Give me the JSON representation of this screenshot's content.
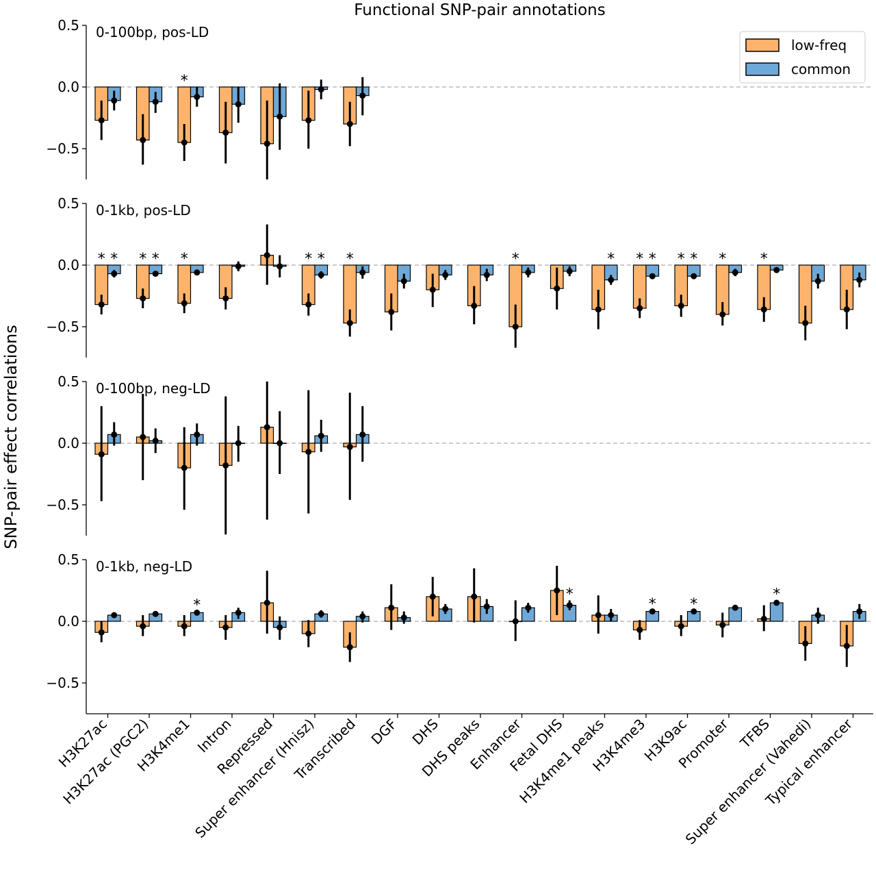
{
  "figure": {
    "title": "Functional SNP-pair annotations",
    "ylabel": "SNP-pair effect correlations",
    "legend": {
      "placement": "top-right",
      "items": [
        {
          "label": "low-freq",
          "color": "#fdb36b"
        },
        {
          "label": "common",
          "color": "#6fa8d6"
        }
      ]
    },
    "colors": {
      "low_freq": "#fdb36b",
      "common": "#6fa8d6",
      "errorbar": "#000000",
      "zero_line": "#bbbbbb"
    }
  },
  "chart_data": [
    {
      "type": "bar",
      "label": "0-100bp, pos-LD",
      "ylim": [
        -0.75,
        0.5
      ],
      "yticks": [
        0.5,
        0.0,
        -0.5
      ],
      "ytick_labels": [
        "0.5",
        "0.0",
        "−0.5"
      ],
      "categories": [
        "H3K27ac",
        "H3K27ac (PGC2)",
        "H3K4me1",
        "Intron",
        "Repressed",
        "Super enhancer (Hnisz)",
        "Transcribed"
      ],
      "series": [
        {
          "name": "low-freq",
          "values": [
            -0.27,
            -0.43,
            -0.45,
            -0.37,
            -0.46,
            -0.27,
            -0.3
          ],
          "err_low": [
            -0.43,
            -0.63,
            -0.6,
            -0.62,
            -0.75,
            -0.5,
            -0.48
          ],
          "err_high": [
            -0.11,
            -0.22,
            -0.3,
            -0.12,
            -0.11,
            -0.03,
            -0.12
          ]
        },
        {
          "name": "common",
          "values": [
            -0.11,
            -0.12,
            -0.08,
            -0.14,
            -0.24,
            -0.02,
            -0.07
          ],
          "err_low": [
            -0.19,
            -0.21,
            -0.16,
            -0.29,
            -0.51,
            -0.1,
            -0.23
          ],
          "err_high": [
            -0.03,
            -0.04,
            0.0,
            0.0,
            0.03,
            0.06,
            0.08
          ]
        }
      ],
      "annotations": [
        {
          "category": 2,
          "series": "low-freq",
          "text": "*"
        }
      ]
    },
    {
      "type": "bar",
      "label": "0-1kb, pos-LD",
      "ylim": [
        -0.75,
        0.5
      ],
      "yticks": [
        0.5,
        0.0,
        -0.5
      ],
      "ytick_labels": [
        "0.5",
        "0.0",
        "−0.5"
      ],
      "categories": [
        "H3K27ac",
        "H3K27ac (PGC2)",
        "H3K4me1",
        "Intron",
        "Repressed",
        "Super enhancer (Hnisz)",
        "Transcribed",
        "DGF",
        "DHS",
        "DHS peaks",
        "Enhancer",
        "Fetal DHS",
        "H3K4me1 peaks",
        "H3K4me3",
        "H3K9ac",
        "Promoter",
        "TFBS",
        "Super enhancer (Vahedi)",
        "Typical enhancer"
      ],
      "series": [
        {
          "name": "low-freq",
          "values": [
            -0.32,
            -0.27,
            -0.31,
            -0.27,
            0.08,
            -0.32,
            -0.47,
            -0.38,
            -0.2,
            -0.33,
            -0.5,
            -0.19,
            -0.36,
            -0.35,
            -0.33,
            -0.4,
            -0.36,
            -0.47,
            -0.36
          ],
          "err_low": [
            -0.4,
            -0.35,
            -0.39,
            -0.36,
            -0.16,
            -0.41,
            -0.58,
            -0.53,
            -0.34,
            -0.48,
            -0.67,
            -0.36,
            -0.52,
            -0.43,
            -0.42,
            -0.49,
            -0.46,
            -0.61,
            -0.52
          ],
          "err_high": [
            -0.24,
            -0.19,
            -0.23,
            -0.18,
            0.33,
            -0.23,
            -0.36,
            -0.23,
            -0.07,
            -0.17,
            -0.32,
            -0.02,
            -0.2,
            -0.27,
            -0.24,
            -0.3,
            -0.26,
            -0.33,
            -0.2
          ]
        },
        {
          "name": "common",
          "values": [
            -0.07,
            -0.07,
            -0.06,
            -0.01,
            -0.01,
            -0.08,
            -0.06,
            -0.13,
            -0.08,
            -0.08,
            -0.06,
            -0.05,
            -0.12,
            -0.09,
            -0.09,
            -0.06,
            -0.04,
            -0.13,
            -0.12
          ],
          "err_low": [
            -0.1,
            -0.09,
            -0.08,
            -0.05,
            -0.1,
            -0.11,
            -0.11,
            -0.19,
            -0.12,
            -0.13,
            -0.1,
            -0.09,
            -0.16,
            -0.11,
            -0.11,
            -0.09,
            -0.06,
            -0.19,
            -0.18
          ],
          "err_high": [
            -0.04,
            -0.05,
            -0.04,
            0.03,
            0.08,
            -0.05,
            -0.01,
            -0.07,
            -0.04,
            -0.03,
            -0.02,
            -0.01,
            -0.08,
            -0.07,
            -0.07,
            -0.03,
            -0.02,
            -0.07,
            -0.06
          ]
        }
      ],
      "annotations": [
        {
          "category": 0,
          "series": "low-freq",
          "text": "*"
        },
        {
          "category": 0,
          "series": "common",
          "text": "*"
        },
        {
          "category": 1,
          "series": "low-freq",
          "text": "*"
        },
        {
          "category": 1,
          "series": "common",
          "text": "*"
        },
        {
          "category": 2,
          "series": "low-freq",
          "text": "*"
        },
        {
          "category": 5,
          "series": "low-freq",
          "text": "*"
        },
        {
          "category": 5,
          "series": "common",
          "text": "*"
        },
        {
          "category": 6,
          "series": "low-freq",
          "text": "*"
        },
        {
          "category": 10,
          "series": "low-freq",
          "text": "*"
        },
        {
          "category": 12,
          "series": "common",
          "text": "*"
        },
        {
          "category": 13,
          "series": "low-freq",
          "text": "*"
        },
        {
          "category": 13,
          "series": "common",
          "text": "*"
        },
        {
          "category": 14,
          "series": "low-freq",
          "text": "*"
        },
        {
          "category": 14,
          "series": "common",
          "text": "*"
        },
        {
          "category": 15,
          "series": "low-freq",
          "text": "*"
        },
        {
          "category": 16,
          "series": "low-freq",
          "text": "*"
        }
      ]
    },
    {
      "type": "bar",
      "label": "0-100bp, neg-LD",
      "ylim": [
        -0.75,
        0.5
      ],
      "yticks": [
        0.5,
        0.0,
        -0.5
      ],
      "ytick_labels": [
        "0.5",
        "0.0",
        "−0.5"
      ],
      "categories": [
        "H3K27ac",
        "H3K27ac (PGC2)",
        "H3K4me1",
        "Intron",
        "Repressed",
        "Super enhancer (Hnisz)",
        "Transcribed"
      ],
      "series": [
        {
          "name": "low-freq",
          "values": [
            -0.09,
            0.05,
            -0.2,
            -0.18,
            0.13,
            -0.07,
            -0.03
          ],
          "err_low": [
            -0.47,
            -0.3,
            -0.54,
            -0.74,
            -0.62,
            -0.57,
            -0.46
          ],
          "err_high": [
            0.3,
            0.4,
            0.13,
            0.38,
            0.5,
            0.43,
            0.41
          ]
        },
        {
          "name": "common",
          "values": [
            0.07,
            0.02,
            0.07,
            0.0,
            0.0,
            0.06,
            0.07
          ],
          "err_low": [
            -0.02,
            -0.08,
            -0.02,
            -0.15,
            -0.25,
            -0.07,
            -0.15
          ],
          "err_high": [
            0.17,
            0.12,
            0.16,
            0.14,
            0.26,
            0.19,
            0.3
          ]
        }
      ],
      "annotations": []
    },
    {
      "type": "bar",
      "label": "0-1kb, neg-LD",
      "ylim": [
        -0.75,
        0.5
      ],
      "yticks": [
        0.5,
        0.0,
        -0.5
      ],
      "ytick_labels": [
        "0.5",
        "0.0",
        "−0.5"
      ],
      "categories": [
        "H3K27ac",
        "H3K27ac (PGC2)",
        "H3K4me1",
        "Intron",
        "Repressed",
        "Super enhancer (Hnisz)",
        "Transcribed",
        "DGF",
        "DHS",
        "DHS peaks",
        "Enhancer",
        "Fetal DHS",
        "H3K4me1 peaks",
        "H3K4me3",
        "H3K9ac",
        "Promoter",
        "TFBS",
        "Super enhancer (Vahedi)",
        "Typical enhancer"
      ],
      "xtick_labels": [
        "H3K27ac",
        "H3K27ac (PGC2)",
        "H3K4me1",
        "Intron",
        "Repressed",
        "Super enhancer (Hnisz)",
        "Transcribed",
        "DGF",
        "DHS",
        "DHS peaks",
        "Enhancer",
        "Fetal DHS",
        "H3K4me1 peaks",
        "H3K4me3",
        "H3K9ac",
        "Promoter",
        "TFBS",
        "Super enhancer (Vahedi)",
        "Typical enhancer"
      ],
      "series": [
        {
          "name": "low-freq",
          "values": [
            -0.09,
            -0.04,
            -0.04,
            -0.05,
            0.15,
            -0.1,
            -0.21,
            0.11,
            0.2,
            0.2,
            0.0,
            0.25,
            0.05,
            -0.07,
            -0.04,
            -0.03,
            0.02,
            -0.18,
            -0.2
          ],
          "err_low": [
            -0.17,
            -0.12,
            -0.12,
            -0.15,
            -0.1,
            -0.21,
            -0.33,
            -0.07,
            0.04,
            -0.01,
            -0.16,
            0.05,
            -0.1,
            -0.15,
            -0.12,
            -0.13,
            -0.08,
            -0.32,
            -0.37
          ],
          "err_high": [
            0.0,
            0.05,
            0.05,
            0.05,
            0.41,
            0.01,
            -0.09,
            0.3,
            0.36,
            0.43,
            0.17,
            0.45,
            0.21,
            0.01,
            0.05,
            0.07,
            0.13,
            -0.04,
            -0.03
          ]
        },
        {
          "name": "common",
          "values": [
            0.05,
            0.06,
            0.07,
            0.07,
            -0.05,
            0.06,
            0.04,
            0.03,
            0.1,
            0.12,
            0.11,
            0.13,
            0.05,
            0.08,
            0.08,
            0.11,
            0.15,
            0.05,
            0.08
          ]
        }
      ],
      "common_err_low": [
        0.04,
        0.05,
        0.06,
        0.02,
        -0.15,
        0.03,
        -0.01,
        -0.02,
        0.06,
        0.06,
        0.07,
        0.09,
        0.0,
        0.07,
        0.07,
        0.09,
        0.13,
        -0.02,
        0.02
      ],
      "common_err_high": [
        0.06,
        0.07,
        0.08,
        0.11,
        0.04,
        0.09,
        0.08,
        0.08,
        0.14,
        0.18,
        0.15,
        0.17,
        0.1,
        0.09,
        0.09,
        0.13,
        0.17,
        0.11,
        0.14
      ],
      "annotations": [
        {
          "category": 2,
          "series": "common",
          "text": "*"
        },
        {
          "category": 11,
          "series": "common",
          "text": "*"
        },
        {
          "category": 13,
          "series": "common",
          "text": "*"
        },
        {
          "category": 14,
          "series": "common",
          "text": "*"
        },
        {
          "category": 16,
          "series": "common",
          "text": "*"
        }
      ]
    }
  ]
}
